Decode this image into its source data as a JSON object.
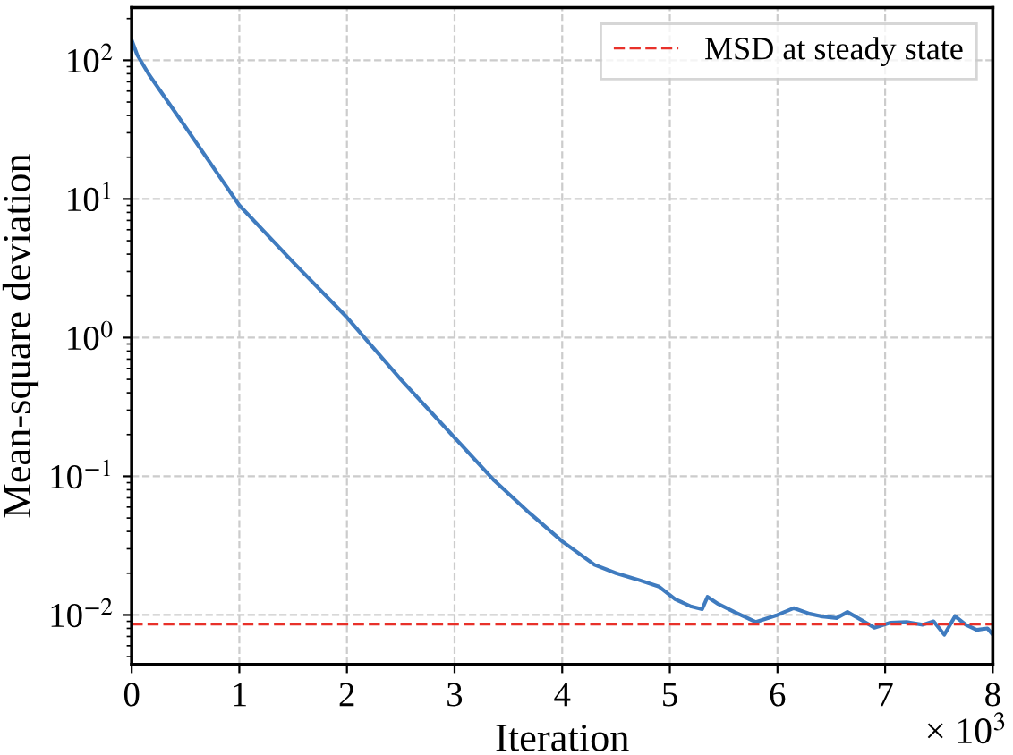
{
  "chart_data": {
    "type": "line",
    "xlabel": "Iteration",
    "ylabel": "Mean-square deviation",
    "x": [
      0,
      0.05,
      0.16,
      0.5,
      1,
      1.5,
      2,
      2.5,
      3,
      3.37,
      3.7,
      4,
      4.3,
      4.5,
      4.7,
      4.9,
      5.05,
      5.2,
      5.3,
      5.35,
      5.45,
      5.6,
      5.8,
      6.0,
      6.15,
      6.3,
      6.4,
      6.55,
      6.65,
      6.8,
      6.9,
      7.05,
      7.2,
      7.35,
      7.45,
      7.55,
      7.65,
      7.75,
      7.85,
      7.95,
      8.0
    ],
    "series": [
      {
        "color": "#3f7bbf",
        "values": [
          140,
          110,
          79,
          33,
          9,
          3.5,
          1.4,
          0.5,
          0.19,
          0.093,
          0.054,
          0.034,
          0.023,
          0.02,
          0.018,
          0.016,
          0.013,
          0.0115,
          0.011,
          0.0135,
          0.012,
          0.0105,
          0.0089,
          0.01,
          0.0112,
          0.0102,
          0.0098,
          0.0095,
          0.0105,
          0.009,
          0.0081,
          0.0088,
          0.0089,
          0.0085,
          0.009,
          0.0072,
          0.0098,
          0.0085,
          0.0078,
          0.008,
          0.0072
        ]
      }
    ],
    "ref_lines": [
      {
        "axis": "y",
        "value": 0.0086,
        "label": "MSD at steady state",
        "color": "#e8312a",
        "line_style": "dashed"
      }
    ],
    "annotations": [
      "× 10$^{3}$"
    ],
    "log": "y",
    "xlim": [
      0,
      8
    ],
    "xticks": [
      0,
      1,
      2,
      3,
      4,
      5,
      6,
      7,
      8
    ],
    "ylim": [
      0.0044,
      240
    ],
    "yticks": [
      {
        "value": 0.01,
        "label": "10$^{−2}$"
      },
      {
        "value": 0.1,
        "label": "10$^{−1}$"
      },
      {
        "value": 1,
        "label": "10$^{0}$"
      },
      {
        "value": 10,
        "label": "10$^{1}$"
      },
      {
        "value": 100,
        "label": "10$^{2}$"
      }
    ],
    "grid": true,
    "legend": "top right",
    "marker": "none",
    "line_style": "solid"
  }
}
